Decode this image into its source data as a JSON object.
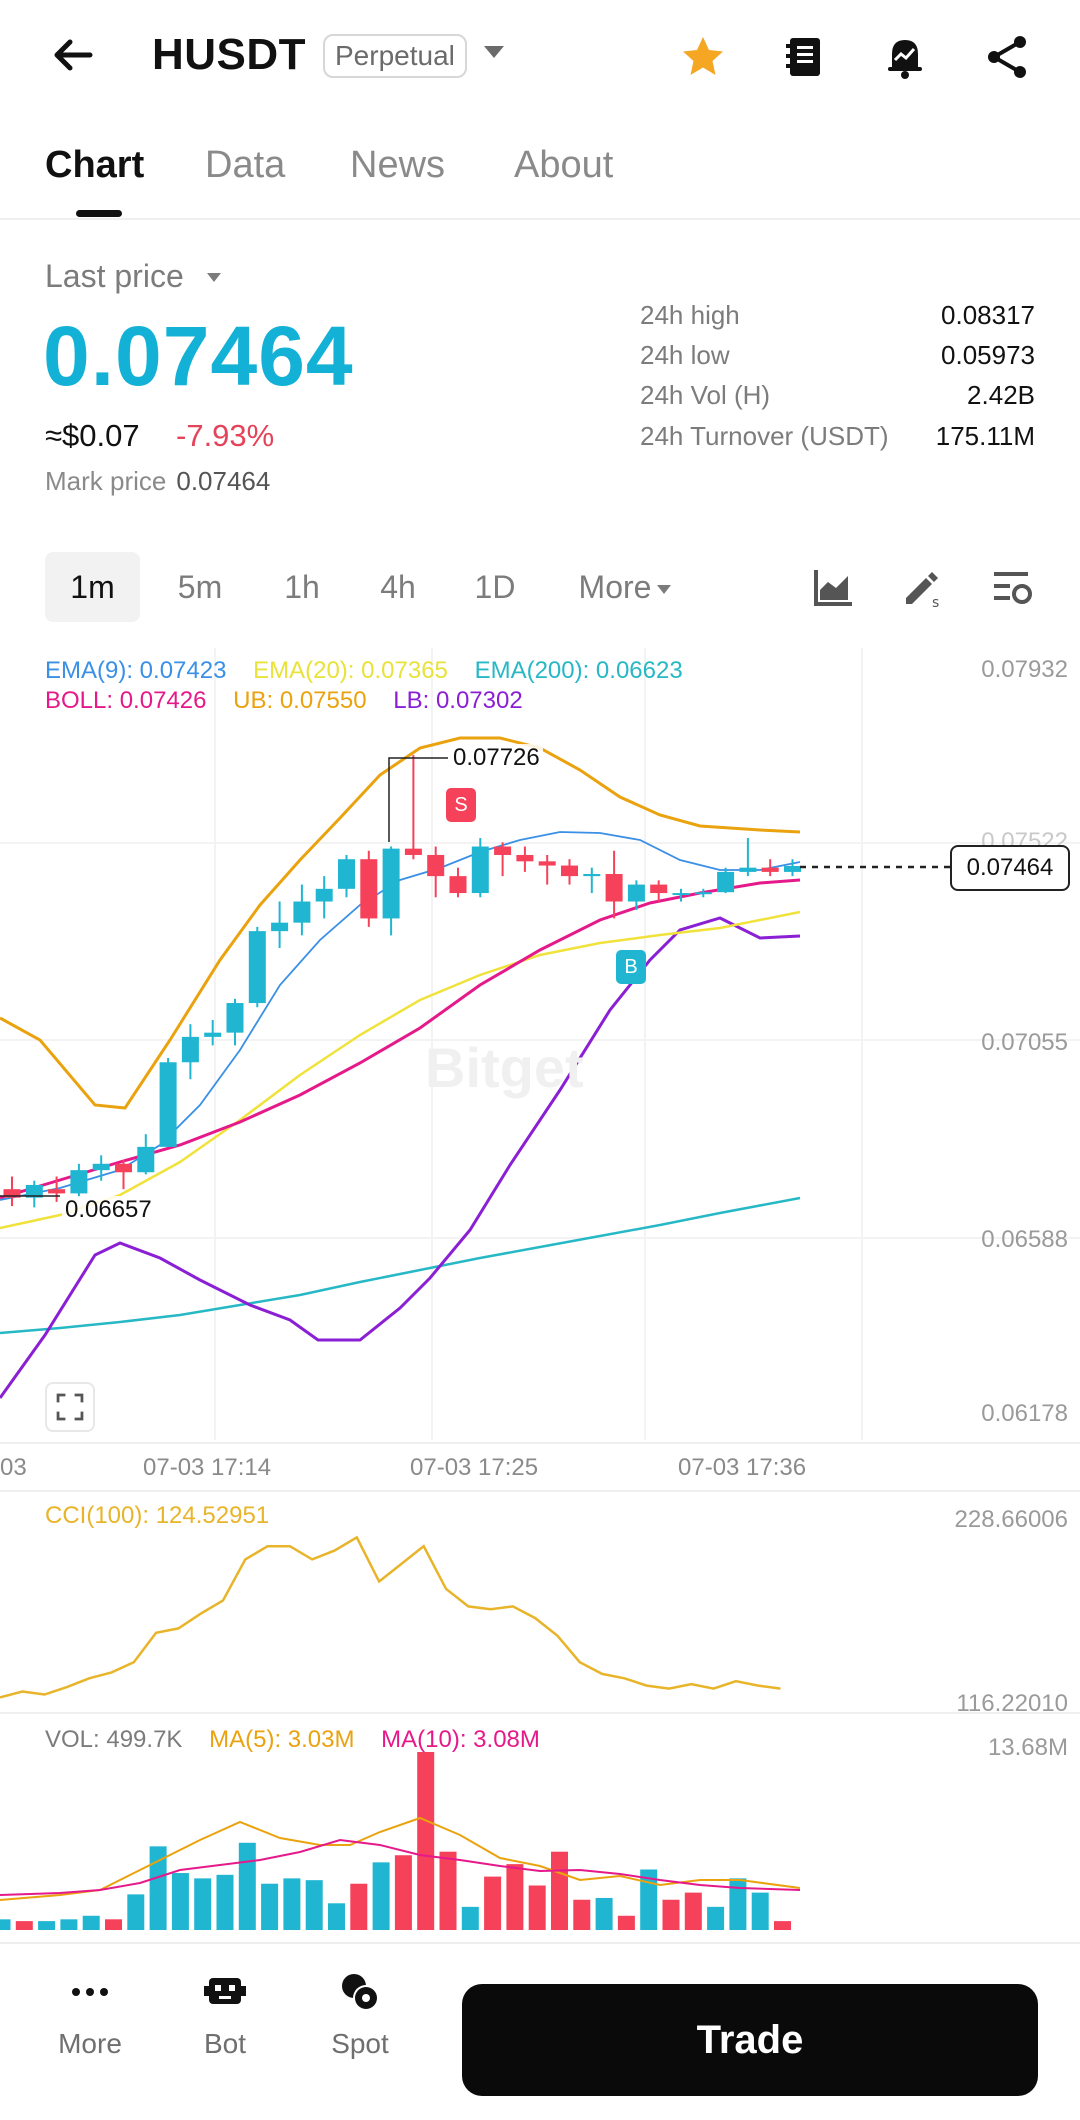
{
  "header": {
    "back_icon": "arrow-left-icon",
    "symbol": "HUSDT",
    "contract_type": "Perpetual",
    "icons": [
      "star-icon",
      "notebook-icon",
      "price-alert-icon",
      "share-icon"
    ]
  },
  "tabs": [
    {
      "label": "Chart",
      "active": true
    },
    {
      "label": "Data",
      "active": false
    },
    {
      "label": "News",
      "active": false
    },
    {
      "label": "About",
      "active": false
    }
  ],
  "price": {
    "label": "Last price",
    "last": "0.07464",
    "usd": "≈$0.07",
    "change": "-7.93%",
    "mark_label": "Mark price",
    "mark_value": "0.07464",
    "accent_color": "#14b1d6",
    "down_color": "#e4445a"
  },
  "stats": [
    {
      "label": "24h high",
      "value": "0.08317"
    },
    {
      "label": "24h low",
      "value": "0.05973"
    },
    {
      "label": "24h Vol (H)",
      "value": "2.42B"
    },
    {
      "label": "24h Turnover (USDT)",
      "value": "175.11M"
    }
  ],
  "intervals": [
    {
      "label": "1m",
      "active": true
    },
    {
      "label": "5m",
      "active": false
    },
    {
      "label": "1h",
      "active": false
    },
    {
      "label": "4h",
      "active": false
    },
    {
      "label": "1D",
      "active": false
    },
    {
      "label": "More",
      "active": false
    }
  ],
  "tools": [
    "indicator-icon",
    "draw-tool-icon",
    "chart-settings-icon"
  ],
  "indicators": {
    "ema9": "EMA(9): 0.07423",
    "ema20": "EMA(20): 0.07365",
    "ema200": "EMA(200): 0.06623",
    "boll": "BOLL: 0.07426",
    "ub": "UB: 0.07550",
    "lb": "LB: 0.07302",
    "cci": "CCI(100): 124.52951",
    "vol": "VOL: 499.7K",
    "ma5": "MA(5): 3.03M",
    "ma10": "MA(10): 3.08M"
  },
  "y_axis_main": [
    "0.07932",
    "0.07522",
    "0.07055",
    "0.06588",
    "0.06178"
  ],
  "y_axis_cci": [
    "228.66006",
    "116.22010"
  ],
  "y_axis_vol": [
    "13.68M"
  ],
  "x_axis": [
    "03",
    "07-03 17:14",
    "07-03 17:25",
    "07-03 17:36"
  ],
  "annotations": {
    "high": "0.07726",
    "low": "0.06657",
    "last_price_tag": "0.07464",
    "sell_marker": "S",
    "buy_marker": "B",
    "watermark": "Bitget"
  },
  "chart_data": {
    "type": "candlestick",
    "timeframe": "1m",
    "candles": [
      {
        "o": 0.067,
        "h": 0.0673,
        "l": 0.0666,
        "c": 0.0668
      },
      {
        "o": 0.0668,
        "h": 0.0672,
        "l": 0.06657,
        "c": 0.0671
      },
      {
        "o": 0.067,
        "h": 0.0673,
        "l": 0.0667,
        "c": 0.0669
      },
      {
        "o": 0.0669,
        "h": 0.0676,
        "l": 0.0668,
        "c": 0.06745
      },
      {
        "o": 0.06745,
        "h": 0.0678,
        "l": 0.0672,
        "c": 0.0676
      },
      {
        "o": 0.0676,
        "h": 0.0677,
        "l": 0.067,
        "c": 0.0674
      },
      {
        "o": 0.0674,
        "h": 0.0683,
        "l": 0.06735,
        "c": 0.068
      },
      {
        "o": 0.068,
        "h": 0.0701,
        "l": 0.068,
        "c": 0.07
      },
      {
        "o": 0.07,
        "h": 0.0709,
        "l": 0.0696,
        "c": 0.0706
      },
      {
        "o": 0.0706,
        "h": 0.071,
        "l": 0.0704,
        "c": 0.0707
      },
      {
        "o": 0.0707,
        "h": 0.0715,
        "l": 0.0704,
        "c": 0.0714
      },
      {
        "o": 0.0714,
        "h": 0.0732,
        "l": 0.0713,
        "c": 0.0731
      },
      {
        "o": 0.0731,
        "h": 0.0738,
        "l": 0.0727,
        "c": 0.0733
      },
      {
        "o": 0.0733,
        "h": 0.0742,
        "l": 0.073,
        "c": 0.0738
      },
      {
        "o": 0.0738,
        "h": 0.0744,
        "l": 0.0734,
        "c": 0.0741
      },
      {
        "o": 0.0741,
        "h": 0.0749,
        "l": 0.0739,
        "c": 0.0748
      },
      {
        "o": 0.0748,
        "h": 0.075,
        "l": 0.0732,
        "c": 0.0734
      },
      {
        "o": 0.0734,
        "h": 0.0751,
        "l": 0.073,
        "c": 0.07505
      },
      {
        "o": 0.07505,
        "h": 0.07726,
        "l": 0.0748,
        "c": 0.0749
      },
      {
        "o": 0.0749,
        "h": 0.0751,
        "l": 0.0739,
        "c": 0.0744
      },
      {
        "o": 0.0744,
        "h": 0.0746,
        "l": 0.0739,
        "c": 0.074
      },
      {
        "o": 0.074,
        "h": 0.0753,
        "l": 0.0739,
        "c": 0.0751
      },
      {
        "o": 0.0751,
        "h": 0.0752,
        "l": 0.0744,
        "c": 0.0749
      },
      {
        "o": 0.0749,
        "h": 0.0751,
        "l": 0.0745,
        "c": 0.07475
      },
      {
        "o": 0.07475,
        "h": 0.0749,
        "l": 0.0742,
        "c": 0.07465
      },
      {
        "o": 0.07465,
        "h": 0.0748,
        "l": 0.0742,
        "c": 0.0744
      },
      {
        "o": 0.0744,
        "h": 0.0746,
        "l": 0.074,
        "c": 0.07445
      },
      {
        "o": 0.07445,
        "h": 0.075,
        "l": 0.0734,
        "c": 0.0738
      },
      {
        "o": 0.0738,
        "h": 0.0743,
        "l": 0.0736,
        "c": 0.0742
      },
      {
        "o": 0.0742,
        "h": 0.0743,
        "l": 0.0738,
        "c": 0.074
      },
      {
        "o": 0.074,
        "h": 0.0741,
        "l": 0.0738,
        "c": 0.074
      },
      {
        "o": 0.074,
        "h": 0.0741,
        "l": 0.0739,
        "c": 0.07402
      },
      {
        "o": 0.07402,
        "h": 0.0746,
        "l": 0.074,
        "c": 0.0745
      },
      {
        "o": 0.0745,
        "h": 0.0753,
        "l": 0.0744,
        "c": 0.0746
      },
      {
        "o": 0.0746,
        "h": 0.0748,
        "l": 0.0744,
        "c": 0.0745
      },
      {
        "o": 0.0745,
        "h": 0.0748,
        "l": 0.0744,
        "c": 0.07464
      }
    ],
    "volume_relative": [
      0.06,
      0.05,
      0.05,
      0.06,
      0.08,
      0.06,
      0.2,
      0.47,
      0.32,
      0.29,
      0.31,
      0.49,
      0.26,
      0.29,
      0.28,
      0.15,
      0.26,
      0.38,
      0.42,
      1.0,
      0.44,
      0.13,
      0.3,
      0.37,
      0.25,
      0.44,
      0.17,
      0.18,
      0.08,
      0.34,
      0.17,
      0.21,
      0.13,
      0.29,
      0.21,
      0.05
    ],
    "volume_up": [
      true,
      false,
      true,
      true,
      true,
      false,
      true,
      true,
      true,
      true,
      true,
      true,
      true,
      true,
      true,
      true,
      false,
      true,
      false,
      false,
      false,
      true,
      false,
      false,
      false,
      false,
      false,
      true,
      false,
      true,
      false,
      false,
      true,
      true,
      true,
      false
    ],
    "cci": [
      118,
      122,
      120,
      125,
      131,
      135,
      142,
      162,
      165,
      175,
      184,
      212,
      221,
      221,
      212,
      218,
      227,
      197,
      209,
      221,
      192,
      180,
      178,
      180,
      172,
      160,
      142,
      134,
      131,
      126,
      124,
      127,
      124,
      129,
      126,
      124
    ],
    "colors": {
      "up": "#20b6d2",
      "down": "#f5415a",
      "ema9": "#3a8fe6",
      "ema20": "#f0e23a",
      "ema200": "#27b8c6",
      "boll": "#e5198a",
      "ub": "#eaa20e",
      "lb": "#8a1fd4",
      "cci": "#e8b42a"
    },
    "y_range": [
      0.06178,
      0.07932
    ],
    "cci_range": [
      116.2201,
      228.66006
    ],
    "volume_max_label": "13.68M"
  },
  "bottom_nav": [
    {
      "label": "More",
      "icon": "more-dots-icon"
    },
    {
      "label": "Bot",
      "icon": "bot-icon"
    },
    {
      "label": "Spot",
      "icon": "spot-icon"
    }
  ],
  "trade_button": "Trade"
}
